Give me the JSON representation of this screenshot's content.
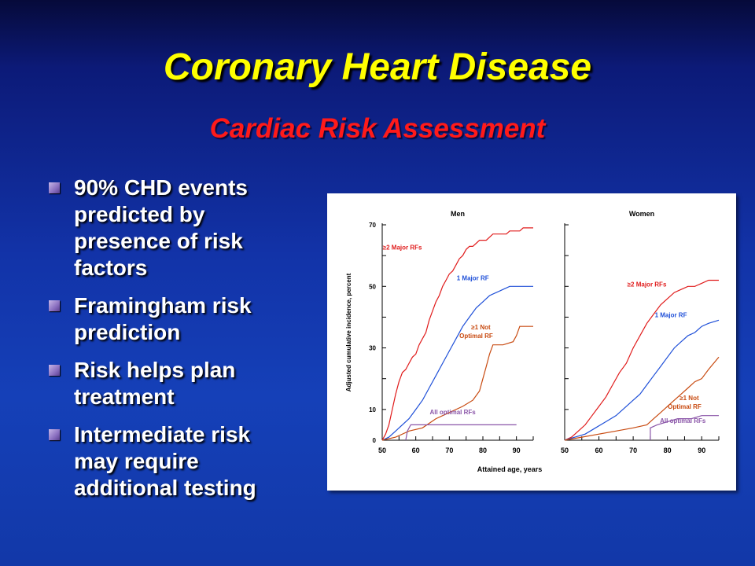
{
  "slide": {
    "title": "Coronary Heart Disease",
    "subtitle": "Cardiac Risk Assessment",
    "bullets": [
      "90% CHD events predicted by presence of risk factors",
      "Framingham risk prediction",
      "Risk helps plan treatment",
      "Intermediate risk may require additional testing"
    ],
    "colors": {
      "title": "#ffff00",
      "subtitle": "#ff1a1a",
      "text": "#ffffff",
      "background": "#1538b0"
    }
  },
  "chart_data": {
    "type": "line",
    "ylabel": "Adjusted cumulative incidence, percent",
    "xlabel": "Attained age, years",
    "xlim": [
      50,
      95
    ],
    "ylim": [
      0,
      70
    ],
    "y_ticks": [
      0,
      10,
      30,
      50,
      70
    ],
    "x_ticks": [
      50,
      60,
      70,
      80,
      90
    ],
    "grid": false,
    "panels": [
      {
        "title": "Men",
        "series": [
          {
            "name": "≥2 Major RFs",
            "color": "#e01b1b",
            "label_at": [
              56,
              62
            ],
            "points": [
              [
                50,
                0
              ],
              [
                51,
                2
              ],
              [
                52,
                5
              ],
              [
                53,
                10
              ],
              [
                54,
                15
              ],
              [
                55,
                19
              ],
              [
                56,
                22
              ],
              [
                57,
                23
              ],
              [
                58,
                25
              ],
              [
                59,
                27
              ],
              [
                60,
                28
              ],
              [
                61,
                31
              ],
              [
                62,
                33
              ],
              [
                63,
                35
              ],
              [
                64,
                39
              ],
              [
                65,
                42
              ],
              [
                66,
                45
              ],
              [
                67,
                47
              ],
              [
                68,
                50
              ],
              [
                69,
                52
              ],
              [
                70,
                54
              ],
              [
                71,
                55
              ],
              [
                72,
                57
              ],
              [
                73,
                59
              ],
              [
                74,
                60
              ],
              [
                75,
                62
              ],
              [
                76,
                63
              ],
              [
                77,
                63
              ],
              [
                78,
                64
              ],
              [
                79,
                65
              ],
              [
                80,
                65
              ],
              [
                81,
                65
              ],
              [
                82,
                66
              ],
              [
                83,
                67
              ],
              [
                84,
                67
              ],
              [
                85,
                67
              ],
              [
                86,
                67
              ],
              [
                87,
                67
              ],
              [
                88,
                68
              ],
              [
                89,
                68
              ],
              [
                90,
                68
              ],
              [
                91,
                68
              ],
              [
                92,
                69
              ],
              [
                93,
                69
              ],
              [
                94,
                69
              ],
              [
                95,
                69
              ]
            ]
          },
          {
            "name": "1 Major RF",
            "color": "#1e4fd8",
            "label_at": [
              77,
              52
            ],
            "points": [
              [
                50,
                0
              ],
              [
                52,
                1
              ],
              [
                54,
                3
              ],
              [
                56,
                5
              ],
              [
                58,
                7
              ],
              [
                60,
                10
              ],
              [
                62,
                13
              ],
              [
                64,
                17
              ],
              [
                66,
                21
              ],
              [
                68,
                25
              ],
              [
                70,
                29
              ],
              [
                72,
                33
              ],
              [
                74,
                37
              ],
              [
                76,
                40
              ],
              [
                78,
                43
              ],
              [
                80,
                45
              ],
              [
                82,
                47
              ],
              [
                84,
                48
              ],
              [
                86,
                49
              ],
              [
                88,
                50
              ],
              [
                90,
                50
              ],
              [
                92,
                50
              ],
              [
                95,
                50
              ]
            ]
          },
          {
            "name": "≥1 Not Optimal RF",
            "color": "#c84a10",
            "label_at": [
              78,
              36
            ],
            "points": [
              [
                50,
                0
              ],
              [
                54,
                1
              ],
              [
                58,
                3
              ],
              [
                62,
                4
              ],
              [
                66,
                7
              ],
              [
                70,
                9
              ],
              [
                74,
                11
              ],
              [
                77,
                13
              ],
              [
                79,
                16
              ],
              [
                80,
                20
              ],
              [
                81,
                24
              ],
              [
                82,
                28
              ],
              [
                83,
                31
              ],
              [
                86,
                31
              ],
              [
                89,
                32
              ],
              [
                90,
                34
              ],
              [
                91,
                37
              ],
              [
                95,
                37
              ]
            ]
          },
          {
            "name": "All optimal RFs",
            "color": "#8a55a8",
            "label_at": [
              71,
              8.4
            ],
            "points": [
              [
                57,
                0
              ],
              [
                57.5,
                3
              ],
              [
                58.5,
                5
              ],
              [
                70,
                5
              ],
              [
                80,
                5
              ],
              [
                85,
                5
              ],
              [
                90,
                5
              ]
            ]
          }
        ]
      },
      {
        "title": "Women",
        "series": [
          {
            "name": "≥2 Major RFs",
            "color": "#e01b1b",
            "label_at": [
              74,
              50
            ],
            "points": [
              [
                50,
                0
              ],
              [
                52,
                1
              ],
              [
                54,
                3
              ],
              [
                56,
                5
              ],
              [
                58,
                8
              ],
              [
                60,
                11
              ],
              [
                62,
                14
              ],
              [
                64,
                18
              ],
              [
                66,
                22
              ],
              [
                68,
                25
              ],
              [
                70,
                30
              ],
              [
                72,
                34
              ],
              [
                74,
                38
              ],
              [
                76,
                41
              ],
              [
                78,
                44
              ],
              [
                80,
                46
              ],
              [
                82,
                48
              ],
              [
                84,
                49
              ],
              [
                86,
                50
              ],
              [
                88,
                50
              ],
              [
                90,
                51
              ],
              [
                92,
                52
              ],
              [
                95,
                52
              ]
            ]
          },
          {
            "name": "1 Major RF",
            "color": "#1e4fd8",
            "label_at": [
              81,
              40
            ],
            "points": [
              [
                50,
                0
              ],
              [
                53,
                1
              ],
              [
                56,
                2
              ],
              [
                59,
                4
              ],
              [
                62,
                6
              ],
              [
                65,
                8
              ],
              [
                68,
                11
              ],
              [
                70,
                13
              ],
              [
                72,
                15
              ],
              [
                74,
                18
              ],
              [
                76,
                21
              ],
              [
                78,
                24
              ],
              [
                80,
                27
              ],
              [
                82,
                30
              ],
              [
                84,
                32
              ],
              [
                86,
                34
              ],
              [
                88,
                35
              ],
              [
                90,
                37
              ],
              [
                92,
                38
              ],
              [
                95,
                39
              ]
            ]
          },
          {
            "name": "≥1 Not Optimal RF",
            "color": "#c84a10",
            "label_at": [
              85,
              13
            ],
            "points": [
              [
                50,
                0
              ],
              [
                55,
                1
              ],
              [
                60,
                2
              ],
              [
                65,
                3
              ],
              [
                70,
                4
              ],
              [
                74,
                5
              ],
              [
                76,
                7
              ],
              [
                78,
                9
              ],
              [
                80,
                11
              ],
              [
                82,
                13
              ],
              [
                84,
                15
              ],
              [
                86,
                17
              ],
              [
                88,
                19
              ],
              [
                90,
                20
              ],
              [
                92,
                23
              ],
              [
                95,
                27
              ]
            ]
          },
          {
            "name": "All optimal RFs",
            "color": "#8a55a8",
            "label_at": [
              84.5,
              5.6
            ],
            "points": [
              [
                75,
                0
              ],
              [
                75,
                4
              ],
              [
                77,
                5
              ],
              [
                80,
                6
              ],
              [
                83,
                7
              ],
              [
                87,
                7
              ],
              [
                90,
                8
              ],
              [
                95,
                8
              ]
            ]
          }
        ]
      }
    ]
  }
}
